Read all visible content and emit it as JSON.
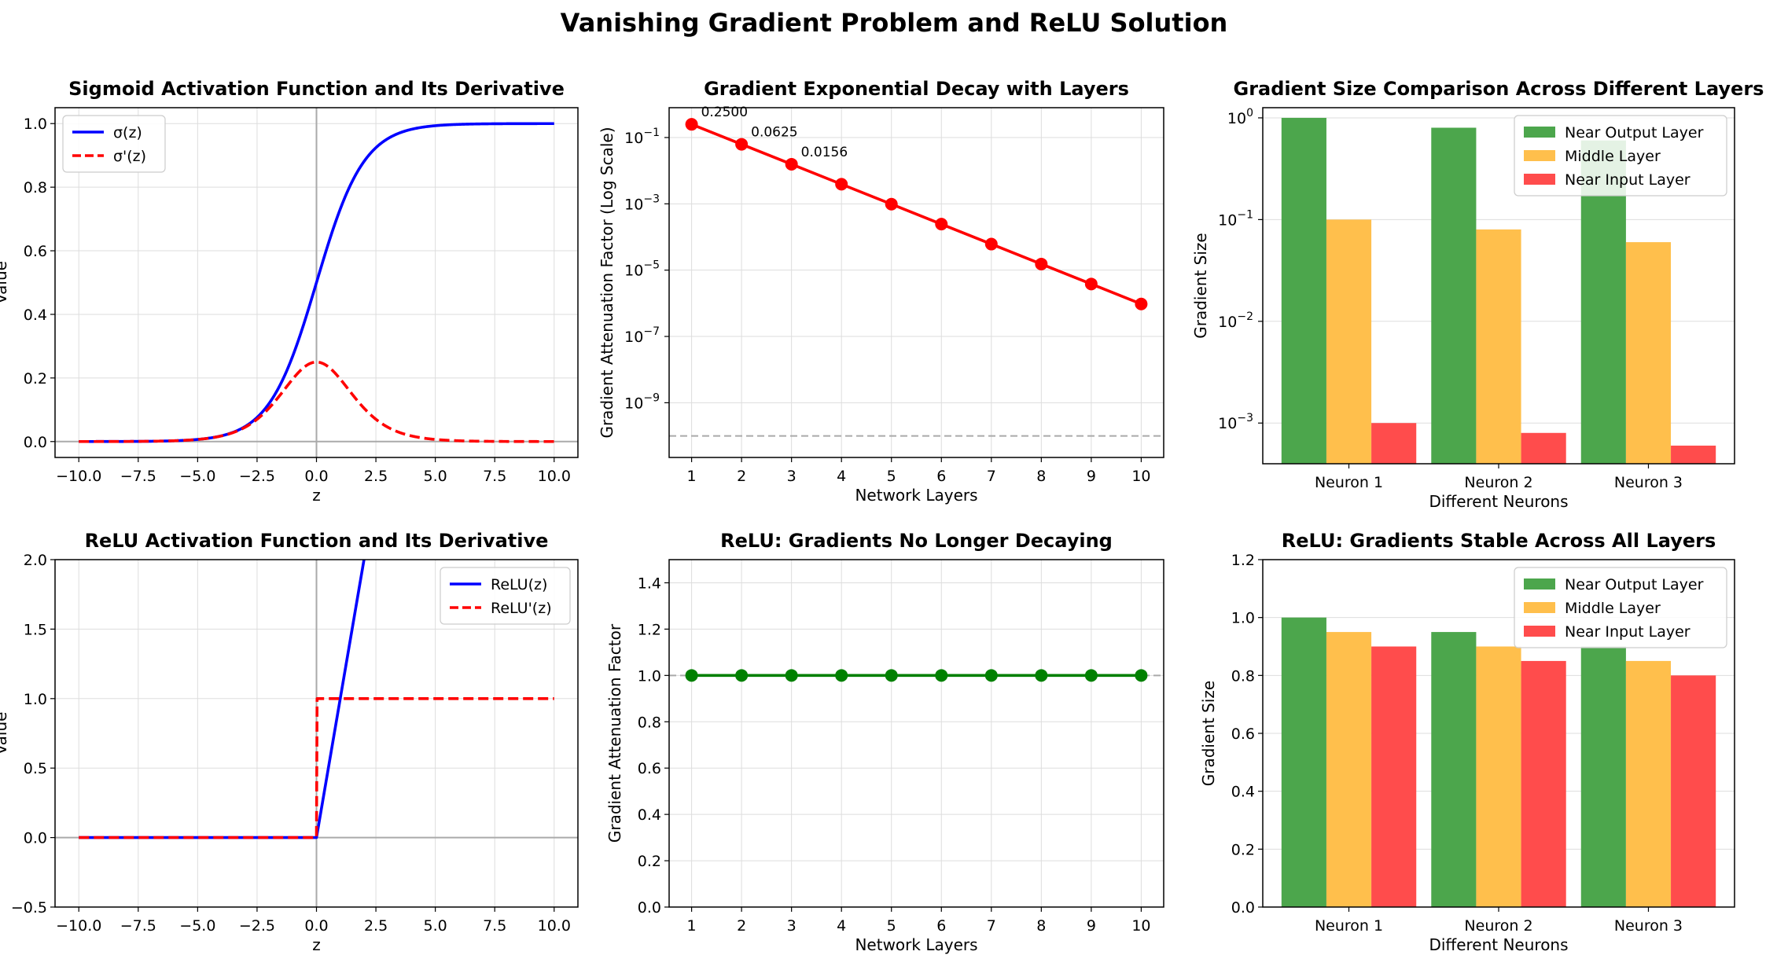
{
  "figure": {
    "title": "Vanishing Gradient Problem and ReLU Solution"
  },
  "chart_data": [
    {
      "id": "sigmoid",
      "type": "line",
      "title": "Sigmoid Activation Function and Its Derivative",
      "xlabel": "z",
      "ylabel": "Value",
      "xlim": [
        -11,
        11
      ],
      "ylim": [
        -0.05,
        1.05
      ],
      "xticks": [
        -10.0,
        -7.5,
        -5.0,
        -2.5,
        0.0,
        2.5,
        5.0,
        7.5,
        10.0
      ],
      "xtick_labels": [
        "−10.0",
        "−7.5",
        "−5.0",
        "−2.5",
        "0.0",
        "2.5",
        "5.0",
        "7.5",
        "10.0"
      ],
      "yticks": [
        0.0,
        0.2,
        0.4,
        0.6,
        0.8,
        1.0
      ],
      "ytick_labels": [
        "0.0",
        "0.2",
        "0.4",
        "0.6",
        "0.8",
        "1.0"
      ],
      "legend_position": "upper-left",
      "series": [
        {
          "name": "σ(z)",
          "function": "sigmoid",
          "domain": [
            -10,
            10
          ],
          "color": "#0000ff",
          "style": "solid"
        },
        {
          "name": "σ'(z)",
          "function": "sigmoid_derivative",
          "domain": [
            -10,
            10
          ],
          "color": "#ff0000",
          "style": "dashed"
        }
      ]
    },
    {
      "id": "decay",
      "type": "line",
      "title": "Gradient Exponential Decay with Layers",
      "xlabel": "Network Layers",
      "ylabel": "Gradient Attenuation Factor (Log Scale)",
      "yscale": "log",
      "xlim": [
        0.55,
        10.45
      ],
      "ylim_log10": [
        -10.65,
        -0.1
      ],
      "xticks": [
        1,
        2,
        3,
        4,
        5,
        6,
        7,
        8,
        9,
        10
      ],
      "xtick_labels": [
        "1",
        "2",
        "3",
        "4",
        "5",
        "6",
        "7",
        "8",
        "9",
        "10"
      ],
      "yticks_log10": [
        -9,
        -7,
        -5,
        -3,
        -1
      ],
      "ytick_labels": [
        "10",
        "10",
        "10",
        "10",
        "10"
      ],
      "ytick_exponents": [
        "−9",
        "−7",
        "−5",
        "−3",
        "−1"
      ],
      "series": [
        {
          "name": "Gradient attenuation",
          "color": "#ff0000",
          "style": "solid",
          "x": [
            1,
            2,
            3,
            4,
            5,
            6,
            7,
            8,
            9,
            10
          ],
          "y": [
            0.25,
            0.0625,
            0.015625,
            0.00390625,
            0.0009765625,
            0.000244140625,
            6.103515625e-05,
            1.52587890625e-05,
            3.814697265625e-06,
            9.5367431640625e-07
          ]
        }
      ],
      "reference_line": {
        "y": 1e-10,
        "color": "#aaaaaa",
        "style": "dashed"
      },
      "annotations": [
        {
          "x": 1,
          "text": "0.2500"
        },
        {
          "x": 2,
          "text": "0.0625"
        },
        {
          "x": 3,
          "text": "0.0156"
        }
      ]
    },
    {
      "id": "sig_bars",
      "type": "bar",
      "title": "Gradient Size Comparison Across Different Layers",
      "xlabel": "Different Neurons",
      "ylabel": "Gradient Size",
      "yscale": "log",
      "ylim_log10": [
        -3.4,
        0.1
      ],
      "yticks_log10": [
        -3,
        -2,
        -1,
        0
      ],
      "ytick_labels": [
        "10",
        "10",
        "10",
        "10"
      ],
      "ytick_exponents": [
        "−3",
        "−2",
        "−1",
        "0"
      ],
      "categories": [
        "Neuron 1",
        "Neuron 2",
        "Neuron 3"
      ],
      "legend_position": "upper-right",
      "series": [
        {
          "name": "Near Output Layer",
          "color": "#4ca64c",
          "values": [
            1.0,
            0.8,
            0.6
          ]
        },
        {
          "name": "Middle Layer",
          "color": "#ffbf4c",
          "values": [
            0.1,
            0.08,
            0.06
          ]
        },
        {
          "name": "Near Input Layer",
          "color": "#ff4c4c",
          "values": [
            0.001,
            0.0008,
            0.0006
          ]
        }
      ]
    },
    {
      "id": "relu",
      "type": "line",
      "title": "ReLU Activation Function and Its Derivative",
      "xlabel": "z",
      "ylabel": "Value",
      "xlim": [
        -11,
        11
      ],
      "ylim": [
        -0.5,
        2.0
      ],
      "xticks": [
        -10.0,
        -7.5,
        -5.0,
        -2.5,
        0.0,
        2.5,
        5.0,
        7.5,
        10.0
      ],
      "xtick_labels": [
        "−10.0",
        "−7.5",
        "−5.0",
        "−2.5",
        "0.0",
        "2.5",
        "5.0",
        "7.5",
        "10.0"
      ],
      "yticks": [
        -0.5,
        0.0,
        0.5,
        1.0,
        1.5,
        2.0
      ],
      "ytick_labels": [
        "−0.5",
        "0.0",
        "0.5",
        "1.0",
        "1.5",
        "2.0"
      ],
      "legend_position": "upper-right",
      "series": [
        {
          "name": "ReLU(z)",
          "function": "relu",
          "domain": [
            -10,
            10
          ],
          "color": "#0000ff",
          "style": "solid"
        },
        {
          "name": "ReLU'(z)",
          "function": "relu_derivative",
          "domain": [
            -10,
            10
          ],
          "color": "#ff0000",
          "style": "dashed"
        }
      ]
    },
    {
      "id": "relu_flat",
      "type": "line",
      "title": "ReLU: Gradients No Longer Decaying",
      "xlabel": "Network Layers",
      "ylabel": "Gradient Attenuation Factor",
      "xlim": [
        0.55,
        10.45
      ],
      "ylim": [
        0.0,
        1.5
      ],
      "xticks": [
        1,
        2,
        3,
        4,
        5,
        6,
        7,
        8,
        9,
        10
      ],
      "xtick_labels": [
        "1",
        "2",
        "3",
        "4",
        "5",
        "6",
        "7",
        "8",
        "9",
        "10"
      ],
      "yticks": [
        0.0,
        0.2,
        0.4,
        0.6,
        0.8,
        1.0,
        1.2,
        1.4
      ],
      "ytick_labels": [
        "0.0",
        "0.2",
        "0.4",
        "0.6",
        "0.8",
        "1.0",
        "1.2",
        "1.4"
      ],
      "series": [
        {
          "name": "Gradient attenuation",
          "color": "#008000",
          "style": "solid",
          "x": [
            1,
            2,
            3,
            4,
            5,
            6,
            7,
            8,
            9,
            10
          ],
          "y": [
            1,
            1,
            1,
            1,
            1,
            1,
            1,
            1,
            1,
            1
          ]
        }
      ],
      "reference_line": {
        "y": 1.0,
        "color": "#aaaaaa",
        "style": "dashed"
      }
    },
    {
      "id": "relu_bars",
      "type": "bar",
      "title": "ReLU: Gradients Stable Across All Layers",
      "xlabel": "Different Neurons",
      "ylabel": "Gradient Size",
      "ylim": [
        0.0,
        1.2
      ],
      "yticks": [
        0.0,
        0.2,
        0.4,
        0.6,
        0.8,
        1.0,
        1.2
      ],
      "ytick_labels": [
        "0.0",
        "0.2",
        "0.4",
        "0.6",
        "0.8",
        "1.0",
        "1.2"
      ],
      "categories": [
        "Neuron 1",
        "Neuron 2",
        "Neuron 3"
      ],
      "legend_position": "upper-right",
      "series": [
        {
          "name": "Near Output Layer",
          "color": "#4ca64c",
          "values": [
            1.0,
            0.95,
            0.9
          ]
        },
        {
          "name": "Middle Layer",
          "color": "#ffbf4c",
          "values": [
            0.95,
            0.9,
            0.85
          ]
        },
        {
          "name": "Near Input Layer",
          "color": "#ff4c4c",
          "values": [
            0.9,
            0.85,
            0.8
          ]
        }
      ]
    }
  ]
}
